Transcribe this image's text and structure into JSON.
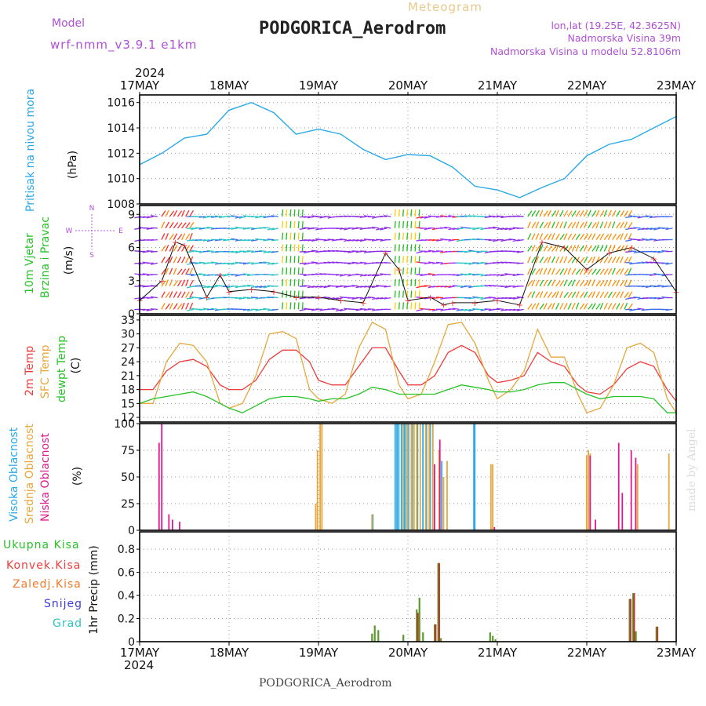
{
  "header": {
    "model_label": "Model",
    "model_value": "wrf-nmm_v3.9.1  e1km",
    "meteogram_label": "Meteogram",
    "station_title": "PODGORICA_Aerodrom",
    "lonlat": "lon,lat (19.25E, 42.3625N)",
    "elevation": "Nadmorska Visina 39m",
    "model_elevation": "Nadmorska Visina u modelu 52.8106m",
    "credit": "made by Angel",
    "footer_station": "PODGORICA_Aerodrom"
  },
  "time_axis": {
    "year": "2024",
    "ticks": [
      "17MAY",
      "18MAY",
      "19MAY",
      "20MAY",
      "21MAY",
      "22MAY",
      "23MAY"
    ]
  },
  "colors": {
    "purple": "#b04fd8",
    "orange_title": "#e9c98a",
    "pressure": "#29a9e8",
    "green": "#27c227",
    "red": "#ee3b3b",
    "orange": "#e7a73c",
    "magenta": "#dd1a8c",
    "cyan": "#2bc4c4",
    "blue": "#3c3cdc"
  },
  "chart_data": [
    {
      "type": "line",
      "panel": "pressure",
      "ylabel_left": "Pritisak na nivou mora",
      "ylabel_unit": "(hPa)",
      "ylim": [
        1008,
        1016.6
      ],
      "yticks": [
        1008,
        1010,
        1012,
        1014,
        1016
      ],
      "grid": true,
      "series": [
        {
          "x": [
            0,
            0.25,
            0.5,
            0.75,
            1,
            1.25,
            1.5,
            1.75,
            2,
            2.25,
            2.5,
            2.75,
            3,
            3.25,
            3.5,
            3.75,
            4,
            4.25,
            4.5,
            4.75,
            5,
            5.25,
            5.5,
            5.75,
            6
          ],
          "values": [
            1011.1,
            1012.0,
            1013.2,
            1013.5,
            1015.4,
            1016.0,
            1015.2,
            1013.5,
            1013.9,
            1013.5,
            1012.3,
            1011.5,
            1011.9,
            1011.8,
            1010.9,
            1009.4,
            1009.1,
            1008.5,
            1009.3,
            1010.0,
            1011.8,
            1012.7,
            1013.1,
            1014.0,
            1014.9
          ]
        }
      ]
    },
    {
      "type": "line",
      "panel": "wind",
      "ylabel_left": [
        "10m Vjetar",
        "Brzina i Pravac"
      ],
      "ylabel_unit": "(m/s)",
      "compass": [
        "N",
        "W",
        "E",
        "S"
      ],
      "ylim": [
        0,
        9.8
      ],
      "yticks": [
        0,
        3,
        6,
        9
      ],
      "grid": true,
      "series": [
        {
          "name": "wind speed",
          "x": [
            0,
            0.25,
            0.4,
            0.5,
            0.75,
            0.9,
            1,
            1.25,
            1.5,
            1.75,
            2,
            2.25,
            2.5,
            2.75,
            2.9,
            3,
            3.25,
            3.4,
            3.5,
            3.75,
            4,
            4.25,
            4.5,
            4.75,
            5,
            5.25,
            5.5,
            5.75,
            6
          ],
          "values": [
            1.2,
            3.0,
            6.5,
            6.2,
            1.5,
            3.5,
            2.0,
            2.2,
            2.0,
            1.5,
            1.5,
            1.2,
            1.0,
            5.5,
            4.0,
            1.2,
            1.5,
            0.8,
            1.0,
            1.0,
            1.2,
            0.8,
            6.5,
            6.0,
            4.0,
            5.5,
            6.0,
            5.0,
            2.0
          ]
        }
      ]
    },
    {
      "type": "line",
      "panel": "temperature",
      "ylabel_left": [
        "2m Temp",
        "SFC Temp",
        "dewpt Temp"
      ],
      "ylabel_unit": "(C)",
      "ylim": [
        11,
        34
      ],
      "yticks": [
        12,
        15,
        18,
        21,
        24,
        27,
        30,
        33
      ],
      "grid": true,
      "x": [
        0,
        0.15,
        0.3,
        0.45,
        0.6,
        0.75,
        0.9,
        1.0,
        1.15,
        1.3,
        1.45,
        1.6,
        1.75,
        1.9,
        2.0,
        2.15,
        2.3,
        2.45,
        2.6,
        2.75,
        2.9,
        3.0,
        3.15,
        3.3,
        3.45,
        3.6,
        3.75,
        3.9,
        4.0,
        4.15,
        4.3,
        4.45,
        4.6,
        4.75,
        4.9,
        5.0,
        5.15,
        5.3,
        5.45,
        5.6,
        5.75,
        5.9,
        6.0
      ],
      "series": [
        {
          "name": "2m Temp",
          "values": [
            18,
            18,
            22,
            24,
            24.5,
            23,
            19,
            18,
            18,
            20,
            24.5,
            26.5,
            26.5,
            24,
            20,
            19,
            19,
            23,
            27,
            27,
            22,
            19,
            19,
            21,
            26,
            27.5,
            26,
            21,
            19.5,
            20,
            21,
            26,
            24,
            23,
            19,
            17.5,
            17,
            19,
            22.5,
            24,
            23,
            18,
            15.5
          ]
        },
        {
          "name": "SFC Temp",
          "values": [
            15,
            15,
            24,
            28,
            27.5,
            24,
            15,
            14,
            15,
            21,
            30,
            30.5,
            29,
            18,
            16,
            15,
            17,
            27,
            32.5,
            31,
            19,
            16,
            17,
            24,
            32,
            32.5,
            28,
            20,
            16,
            18,
            22,
            31,
            25,
            25,
            17,
            13,
            14,
            19,
            27,
            28,
            26,
            16,
            13
          ]
        },
        {
          "name": "dewpt Temp",
          "values": [
            15,
            16,
            16.5,
            17,
            17.5,
            16.5,
            15,
            14,
            13,
            14.5,
            16,
            16.5,
            16.5,
            16,
            15.5,
            16,
            16,
            17,
            18.5,
            18,
            17,
            17,
            17,
            17,
            18,
            19,
            18.5,
            18,
            17.5,
            17.5,
            18,
            19,
            19.5,
            19.5,
            18,
            17,
            16,
            16.5,
            16.5,
            16.5,
            16,
            13,
            13
          ]
        }
      ]
    },
    {
      "type": "bar",
      "panel": "cloud",
      "ylabel_left": [
        "Visoka Oblacnost",
        "Srednja Oblacnost",
        "Niska Oblacnost"
      ],
      "ylabel_unit": "(%)",
      "ylim": [
        0,
        100
      ],
      "yticks": [
        0,
        25,
        50,
        75,
        100
      ],
      "grid": true,
      "series": [
        {
          "name": "Visoka Oblacnost",
          "x": [
            2.6,
            2.85,
            2.87,
            2.89,
            2.92,
            2.95,
            2.97,
            3.0,
            3.04,
            3.1,
            3.16,
            3.2,
            3.24,
            3.27,
            3.37,
            3.73,
            3.74
          ],
          "values": [
            15,
            100,
            100,
            100,
            100,
            100,
            100,
            100,
            100,
            100,
            100,
            100,
            100,
            100,
            65,
            100,
            100
          ]
        },
        {
          "name": "Srednja Oblacnost",
          "x": [
            1.95,
            1.97,
            2.0,
            2.02,
            2.58,
            2.93,
            2.98,
            3.02,
            3.05,
            3.08,
            3.12,
            3.18,
            3.22,
            3.26,
            3.33,
            3.38,
            3.42,
            3.91,
            3.93,
            4.98,
            5.0,
            5.02,
            5.53,
            5.55,
            5.9
          ],
          "values": [
            25,
            75,
            100,
            100,
            15,
            100,
            100,
            100,
            100,
            100,
            100,
            100,
            100,
            100,
            75,
            50,
            65,
            62,
            62,
            70,
            75,
            72,
            55,
            62,
            72
          ]
        },
        {
          "name": "Niska Oblacnost",
          "x": [
            0.22,
            0.25,
            0.33,
            0.37,
            0.45,
            3.3,
            3.36,
            3.97,
            5.04,
            5.1,
            5.36,
            5.4,
            5.5,
            5.55
          ],
          "values": [
            82,
            100,
            15,
            10,
            8,
            62,
            85,
            3,
            70,
            10,
            82,
            35,
            75,
            68
          ]
        }
      ]
    },
    {
      "type": "bar",
      "panel": "precip",
      "ylabel_left": [
        "Ukupna  Kisa",
        "Konvek.Kisa",
        "Zaledj.Kisa",
        "Snijeg",
        "Grad"
      ],
      "ylabel_unit": "1hr Precip (mm)",
      "ylim": [
        0,
        0.95
      ],
      "yticks": [
        0,
        0.2,
        0.4,
        0.6,
        0.8
      ],
      "grid": true,
      "series": [
        {
          "name": "Ukupna  Kisa",
          "x": [
            2.6,
            2.63,
            2.67,
            2.95,
            3.1,
            3.13,
            3.17,
            3.3,
            3.34,
            3.37,
            3.92,
            3.95,
            3.98,
            5.48,
            5.52,
            5.55,
            5.78
          ],
          "values": [
            0.07,
            0.14,
            0.1,
            0.06,
            0.28,
            0.38,
            0.08,
            0.15,
            0.68,
            0.03,
            0.08,
            0.05,
            0.02,
            0.37,
            0.42,
            0.09,
            0.13
          ]
        },
        {
          "name": "Konvek.Kisa",
          "x": [
            3.1,
            3.3,
            3.34,
            5.48,
            5.52,
            5.78
          ],
          "values": [
            0.25,
            0.15,
            0.68,
            0.37,
            0.42,
            0.13
          ]
        }
      ]
    }
  ]
}
